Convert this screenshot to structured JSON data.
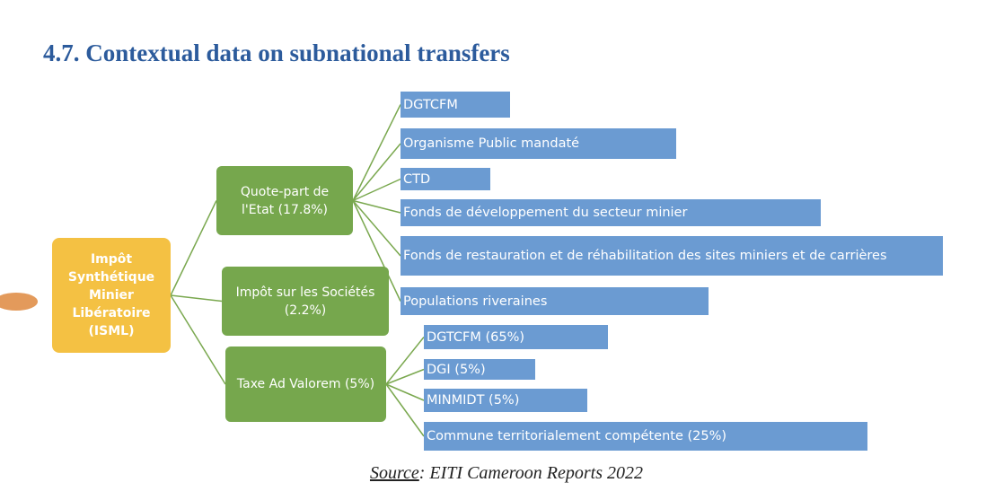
{
  "heading": {
    "title": "4.7.  Contextual data on subnational transfers"
  },
  "root": {
    "label": "Impôt Synthétique Minier Libératoire (ISML)"
  },
  "branches": [
    {
      "label": "Quote-part de l'Etat (17.8%)"
    },
    {
      "label": "Impôt sur les Sociétés (2.2%)"
    },
    {
      "label": "Taxe Ad Valorem (5%)"
    }
  ],
  "leaves": [
    {
      "label": "DGTCFM"
    },
    {
      "label": "Organisme Public mandaté"
    },
    {
      "label": "CTD"
    },
    {
      "label": "Fonds de développement du secteur minier"
    },
    {
      "label": "Fonds de restauration et de réhabilitation des sites miniers et de carrières"
    },
    {
      "label": "Populations riveraines"
    },
    {
      "label": "DGTCFM (65%)"
    },
    {
      "label": "DGI (5%)"
    },
    {
      "label": "MINMIDT (5%)"
    },
    {
      "label": "Commune territorialement compétente (25%)"
    }
  ],
  "source": {
    "label": "Source",
    "text": ": EITI Cameroon Reports 2022"
  }
}
